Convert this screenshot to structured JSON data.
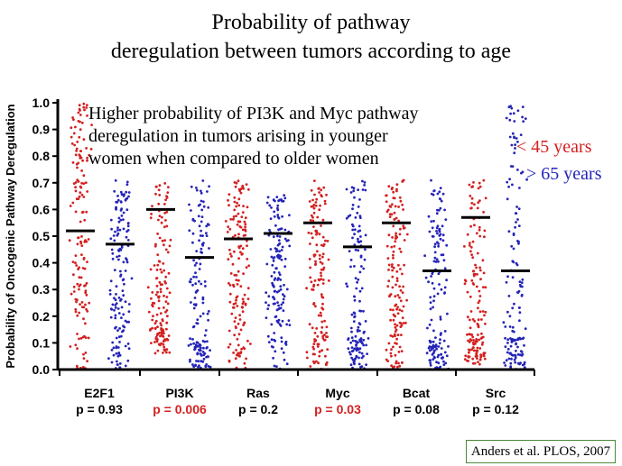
{
  "title_line1": "Probability of pathway",
  "title_line2": "deregulation between tumors according to age",
  "annotation": [
    "Higher probability of PI3K and Myc pathway",
    "deregulation in tumors arising in younger",
    "women when compared to older women"
  ],
  "legend": [
    {
      "label": "< 45 years",
      "color": "#d42020"
    },
    {
      "label": "> 65 years",
      "color": "#2424b8"
    }
  ],
  "citation": "Anders et al. PLOS, 2007",
  "chart_data": {
    "type": "scatter",
    "ylabel": "Probability of Oncogenic Pathway Deregulation",
    "ylim": [
      0,
      1.0
    ],
    "yticks": [
      "0.0",
      "0.1",
      "0.2",
      "0.3",
      "0.4",
      "0.5",
      "0.6",
      "0.7",
      "0.8",
      "0.9",
      "1.0"
    ],
    "categories": [
      "E2F1",
      "PI3K",
      "Ras",
      "Myc",
      "Bcat",
      "Src"
    ],
    "pvalues": [
      {
        "text": "p = 0.93",
        "significant": false
      },
      {
        "text": "p = 0.006",
        "significant": true
      },
      {
        "text": "p = 0.2",
        "significant": false
      },
      {
        "text": "p = 0.03",
        "significant": true
      },
      {
        "text": "p = 0.08",
        "significant": false
      },
      {
        "text": "p = 0.12",
        "significant": false
      }
    ],
    "series": [
      {
        "color": "#d42020",
        "medians": [
          0.52,
          0.6,
          0.49,
          0.55,
          0.55,
          0.57
        ]
      },
      {
        "color": "#2424b8",
        "medians": [
          0.47,
          0.42,
          0.51,
          0.46,
          0.37,
          0.37
        ]
      }
    ]
  }
}
